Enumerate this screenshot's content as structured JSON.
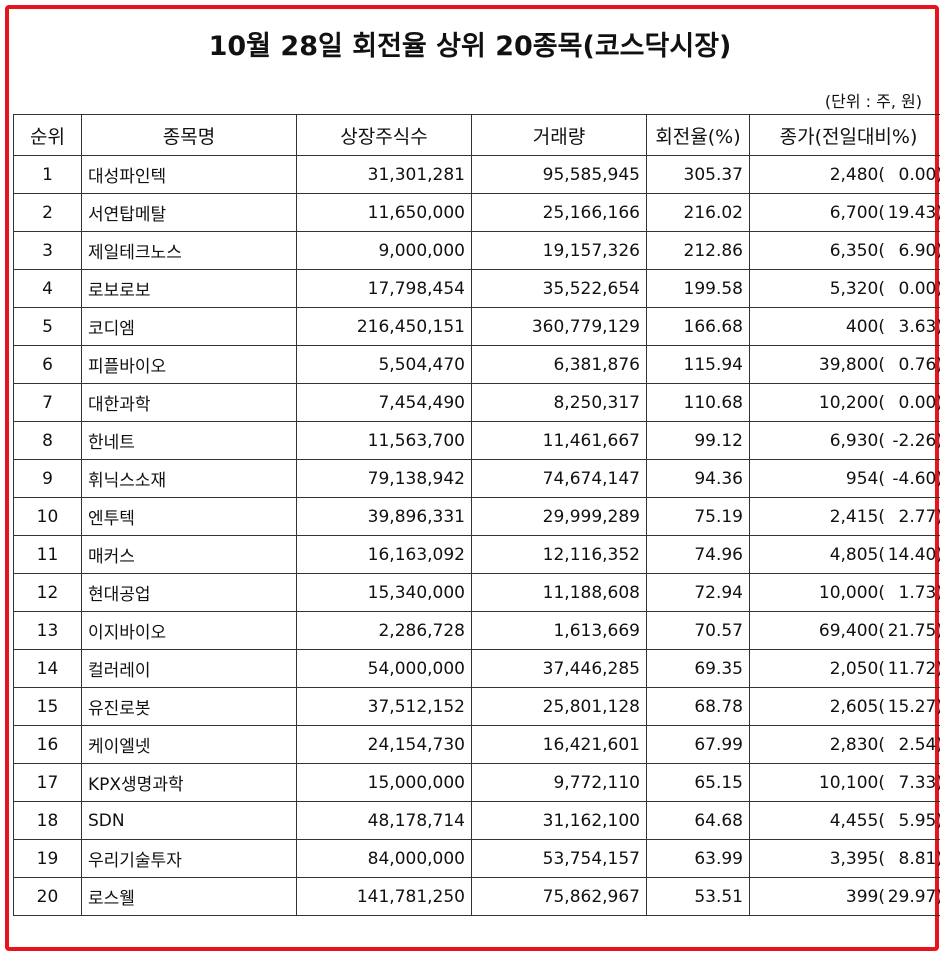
{
  "title": "10월 28일 회전율 상위 20종목(코스닥시장)",
  "unit": "(단위 : 주, 원)",
  "columns": [
    "순위",
    "종목명",
    "상장주식수",
    "거래량",
    "회전율(%)",
    "종가(전일대비%)"
  ],
  "rows": [
    {
      "rank": "1",
      "name": "대성파인텍",
      "listed": "31,301,281",
      "volume": "95,585,945",
      "turnover": "305.37",
      "close": "2,480(",
      "change": "0.00)"
    },
    {
      "rank": "2",
      "name": "서연탑메탈",
      "listed": "11,650,000",
      "volume": "25,166,166",
      "turnover": "216.02",
      "close": "6,700(",
      "change": "19.43)"
    },
    {
      "rank": "3",
      "name": "제일테크노스",
      "listed": "9,000,000",
      "volume": "19,157,326",
      "turnover": "212.86",
      "close": "6,350(",
      "change": "6.90)"
    },
    {
      "rank": "4",
      "name": "로보로보",
      "listed": "17,798,454",
      "volume": "35,522,654",
      "turnover": "199.58",
      "close": "5,320(",
      "change": "0.00)"
    },
    {
      "rank": "5",
      "name": "코디엠",
      "listed": "216,450,151",
      "volume": "360,779,129",
      "turnover": "166.68",
      "close": "400(",
      "change": "3.63)"
    },
    {
      "rank": "6",
      "name": "피플바이오",
      "listed": "5,504,470",
      "volume": "6,381,876",
      "turnover": "115.94",
      "close": "39,800(",
      "change": "0.76)"
    },
    {
      "rank": "7",
      "name": "대한과학",
      "listed": "7,454,490",
      "volume": "8,250,317",
      "turnover": "110.68",
      "close": "10,200(",
      "change": "0.00)"
    },
    {
      "rank": "8",
      "name": "한네트",
      "listed": "11,563,700",
      "volume": "11,461,667",
      "turnover": "99.12",
      "close": "6,930(",
      "change": "-2.26)"
    },
    {
      "rank": "9",
      "name": "휘닉스소재",
      "listed": "79,138,942",
      "volume": "74,674,147",
      "turnover": "94.36",
      "close": "954(",
      "change": "-4.60)"
    },
    {
      "rank": "10",
      "name": "엔투텍",
      "listed": "39,896,331",
      "volume": "29,999,289",
      "turnover": "75.19",
      "close": "2,415(",
      "change": "2.77)"
    },
    {
      "rank": "11",
      "name": "매커스",
      "listed": "16,163,092",
      "volume": "12,116,352",
      "turnover": "74.96",
      "close": "4,805(",
      "change": "14.40)"
    },
    {
      "rank": "12",
      "name": "현대공업",
      "listed": "15,340,000",
      "volume": "11,188,608",
      "turnover": "72.94",
      "close": "10,000(",
      "change": "1.73)"
    },
    {
      "rank": "13",
      "name": "이지바이오",
      "listed": "2,286,728",
      "volume": "1,613,669",
      "turnover": "70.57",
      "close": "69,400(",
      "change": "21.75)"
    },
    {
      "rank": "14",
      "name": "컬러레이",
      "listed": "54,000,000",
      "volume": "37,446,285",
      "turnover": "69.35",
      "close": "2,050(",
      "change": "11.72)"
    },
    {
      "rank": "15",
      "name": "유진로봇",
      "listed": "37,512,152",
      "volume": "25,801,128",
      "turnover": "68.78",
      "close": "2,605(",
      "change": "15.27)"
    },
    {
      "rank": "16",
      "name": "케이엘넷",
      "listed": "24,154,730",
      "volume": "16,421,601",
      "turnover": "67.99",
      "close": "2,830(",
      "change": "2.54)"
    },
    {
      "rank": "17",
      "name": "KPX생명과학",
      "listed": "15,000,000",
      "volume": "9,772,110",
      "turnover": "65.15",
      "close": "10,100(",
      "change": "7.33)"
    },
    {
      "rank": "18",
      "name": "SDN",
      "listed": "48,178,714",
      "volume": "31,162,100",
      "turnover": "64.68",
      "close": "4,455(",
      "change": "5.95)"
    },
    {
      "rank": "19",
      "name": "우리기술투자",
      "listed": "84,000,000",
      "volume": "53,754,157",
      "turnover": "63.99",
      "close": "3,395(",
      "change": "8.81)"
    },
    {
      "rank": "20",
      "name": "로스웰",
      "listed": "141,781,250",
      "volume": "75,862,967",
      "turnover": "53.51",
      "close": "399(",
      "change": "29.97)"
    }
  ],
  "colors": {
    "frame": "#e8141d",
    "border": "#333333",
    "text": "#111111"
  }
}
